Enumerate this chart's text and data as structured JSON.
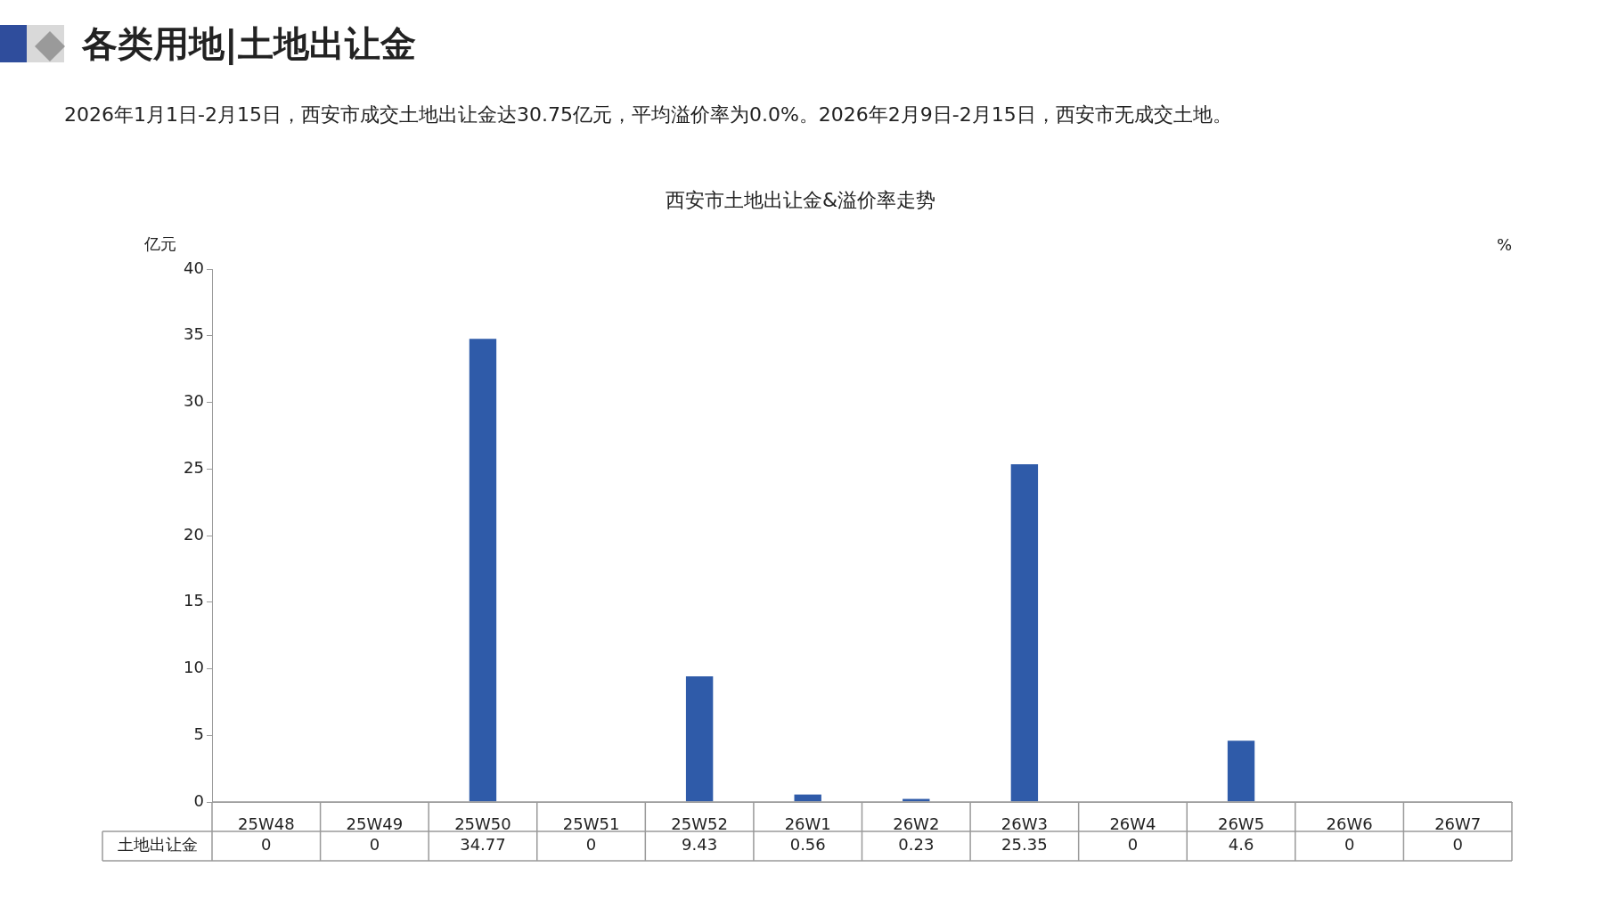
{
  "chart_data": {
    "type": "bar",
    "title": "西安市土地出让金&溢价率走势",
    "subtitle": "2026年1月1日-2月15日，西安市成交土地出让金达30.75亿元，平均溢价率为0.0%。2026年2月9日-2月15日，西安市无成交土地。",
    "annotations": [
      "各类用地|土地出让金"
    ],
    "ylabel": "亿元",
    "y2label": "%",
    "categories": [
      "25W48",
      "25W49",
      "25W50",
      "25W51",
      "25W52",
      "26W1",
      "26W2",
      "26W3",
      "26W4",
      "26W5",
      "26W6",
      "26W7"
    ],
    "series": [
      {
        "name": "土地出让金",
        "color": "#2f5ba9",
        "values": [
          0,
          0,
          34.77,
          0,
          9.43,
          0.56,
          0.23,
          25.35,
          0,
          4.6,
          0,
          0
        ]
      }
    ],
    "ylim": [
      0,
      40
    ],
    "yticks": [
      0,
      5,
      10,
      15,
      20,
      25,
      30,
      35,
      40
    ],
    "grid": false,
    "legend": false,
    "data_labels": true
  }
}
